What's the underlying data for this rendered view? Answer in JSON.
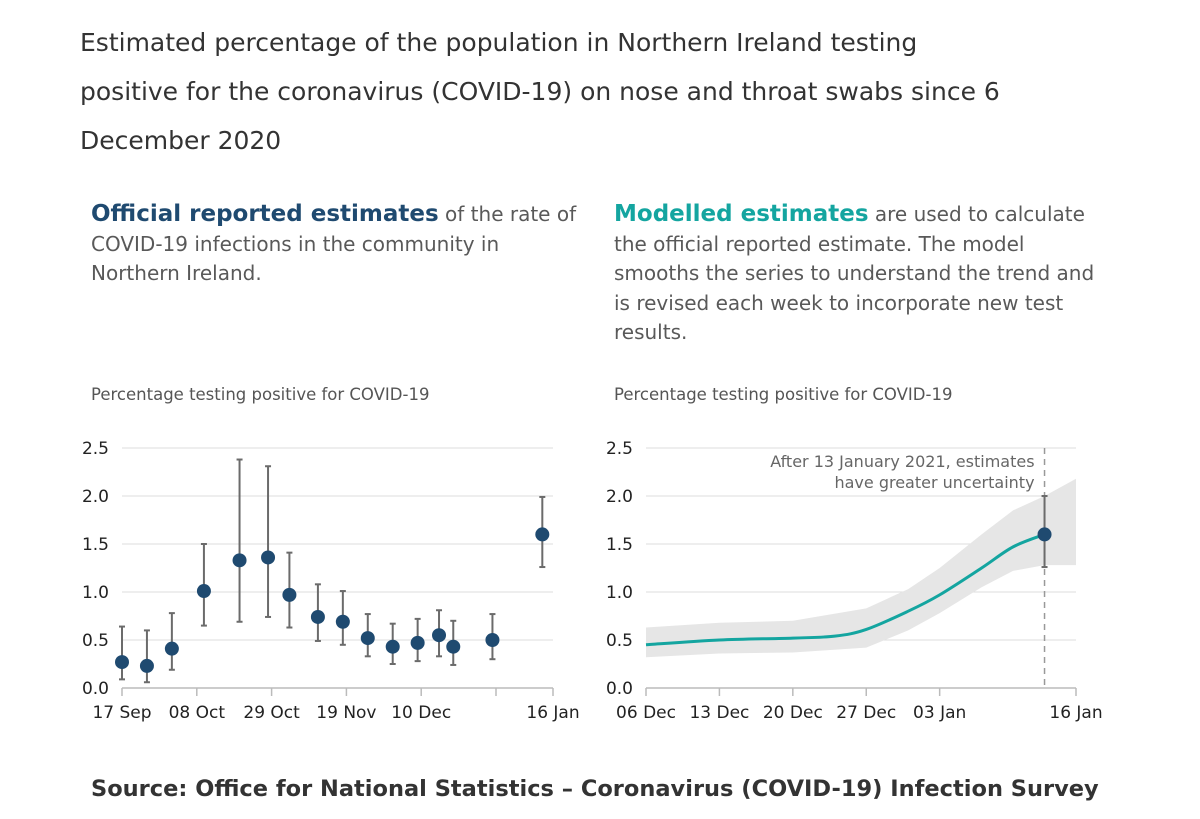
{
  "title": "Estimated percentage of the population in Northern Ireland testing positive for the coronavirus (COVID-19) on nose and throat swabs since 6 December 2020",
  "left_panel": {
    "lead": "Official reported estimates",
    "text": " of the rate of COVID-19 infections in the community in Northern Ireland."
  },
  "right_panel": {
    "lead": "Modelled estimates",
    "text": " are used to calculate the official reported estimate. The model smooths the series to understand the trend and is revised each week to incorporate new test results."
  },
  "source": "Source: Office for National Statistics – Coronavirus (COVID-19) Infection Survey",
  "colors": {
    "point": "#1f4a70",
    "errorbar": "#6b6b6b",
    "line": "#14a5a0",
    "band": "#e6e6e6",
    "grid": "#dcdcdc"
  },
  "chart_data": [
    {
      "type": "scatter",
      "ylabel": "Percentage testing positive for COVID-19",
      "ylim": [
        0,
        2.5
      ],
      "yticks": [
        "0.0",
        "0.5",
        "1.0",
        "1.5",
        "2.0",
        "2.5"
      ],
      "xlim": [
        "2020-09-17",
        "2021-01-16"
      ],
      "xticks": [
        {
          "date": "2020-09-17",
          "label": "17 Sep"
        },
        {
          "date": "2020-10-08",
          "label": "08 Oct"
        },
        {
          "date": "2020-10-29",
          "label": "29 Oct"
        },
        {
          "date": "2020-11-19",
          "label": "19 Nov"
        },
        {
          "date": "2020-12-10",
          "label": "10 Dec"
        },
        {
          "date": "2020-12-31",
          "label": ""
        },
        {
          "date": "2021-01-16",
          "label": "16 Jan"
        }
      ],
      "grid": true,
      "points": [
        {
          "date": "2020-09-17",
          "value": 0.27,
          "lower": 0.09,
          "upper": 0.64
        },
        {
          "date": "2020-09-24",
          "value": 0.23,
          "lower": 0.06,
          "upper": 0.6
        },
        {
          "date": "2020-10-01",
          "value": 0.41,
          "lower": 0.19,
          "upper": 0.78
        },
        {
          "date": "2020-10-10",
          "value": 1.01,
          "lower": 0.65,
          "upper": 1.5
        },
        {
          "date": "2020-10-20",
          "value": 1.33,
          "lower": 0.69,
          "upper": 2.38
        },
        {
          "date": "2020-10-28",
          "value": 1.36,
          "lower": 0.74,
          "upper": 2.31
        },
        {
          "date": "2020-11-03",
          "value": 0.97,
          "lower": 0.63,
          "upper": 1.41
        },
        {
          "date": "2020-11-11",
          "value": 0.74,
          "lower": 0.49,
          "upper": 1.08
        },
        {
          "date": "2020-11-18",
          "value": 0.69,
          "lower": 0.45,
          "upper": 1.01
        },
        {
          "date": "2020-11-25",
          "value": 0.52,
          "lower": 0.33,
          "upper": 0.77
        },
        {
          "date": "2020-12-02",
          "value": 0.43,
          "lower": 0.25,
          "upper": 0.67
        },
        {
          "date": "2020-12-09",
          "value": 0.47,
          "lower": 0.28,
          "upper": 0.72
        },
        {
          "date": "2020-12-15",
          "value": 0.55,
          "lower": 0.33,
          "upper": 0.81
        },
        {
          "date": "2020-12-19",
          "value": 0.43,
          "lower": 0.24,
          "upper": 0.7
        },
        {
          "date": "2020-12-30",
          "value": 0.5,
          "lower": 0.3,
          "upper": 0.77
        },
        {
          "date": "2021-01-13",
          "value": 1.6,
          "lower": 1.26,
          "upper": 1.99
        }
      ]
    },
    {
      "type": "line",
      "ylabel": "Percentage testing positive for COVID-19",
      "ylim": [
        0,
        2.5
      ],
      "yticks": [
        "0.0",
        "0.5",
        "1.0",
        "1.5",
        "2.0",
        "2.5"
      ],
      "xlim": [
        "2020-12-06",
        "2021-01-16"
      ],
      "xticks": [
        {
          "date": "2020-12-06",
          "label": "06 Dec"
        },
        {
          "date": "2020-12-13",
          "label": "13 Dec"
        },
        {
          "date": "2020-12-20",
          "label": "20 Dec"
        },
        {
          "date": "2020-12-27",
          "label": "27 Dec"
        },
        {
          "date": "2021-01-03",
          "label": "03 Jan"
        },
        {
          "date": "2021-01-16",
          "label": "16 Jan"
        }
      ],
      "grid": true,
      "annotation": {
        "date": "2021-01-13",
        "lines": [
          "After 13 January 2021, estimates",
          "have greater uncertainty"
        ]
      },
      "series": [
        {
          "x": [
            "2020-12-06",
            "2020-12-13",
            "2020-12-20",
            "2020-12-24",
            "2020-12-27",
            "2020-12-31",
            "2021-01-03",
            "2021-01-07",
            "2021-01-10",
            "2021-01-13"
          ],
          "values": [
            0.45,
            0.5,
            0.52,
            0.54,
            0.61,
            0.8,
            0.97,
            1.25,
            1.47,
            1.6
          ]
        }
      ],
      "band": {
        "x": [
          "2020-12-06",
          "2020-12-13",
          "2020-12-20",
          "2020-12-27",
          "2020-12-31",
          "2021-01-03",
          "2021-01-07",
          "2021-01-10",
          "2021-01-13",
          "2021-01-16"
        ],
        "upper": [
          0.63,
          0.68,
          0.7,
          0.83,
          1.03,
          1.25,
          1.6,
          1.85,
          2.0,
          2.18
        ],
        "lower": [
          0.32,
          0.36,
          0.37,
          0.42,
          0.6,
          0.78,
          1.05,
          1.22,
          1.28,
          1.28
        ]
      },
      "points": [
        {
          "date": "2021-01-13",
          "value": 1.6,
          "lower": 1.26,
          "upper": 2.0
        }
      ]
    }
  ]
}
